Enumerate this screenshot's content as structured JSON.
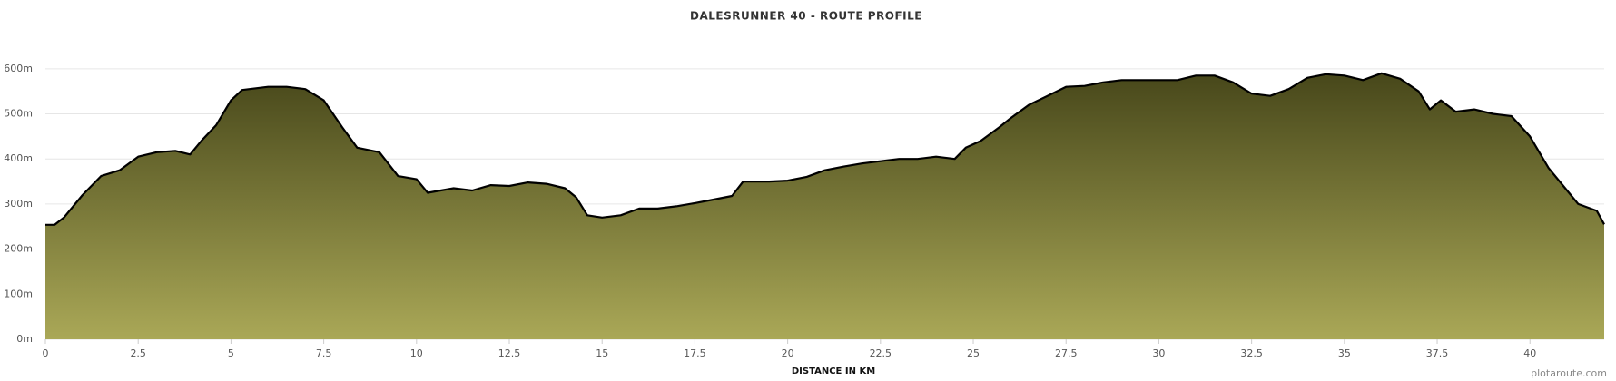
{
  "chart_data": {
    "type": "area",
    "title": "DALESRUNNER 40 - ROUTE PROFILE",
    "x_label": "DISTANCE IN KM",
    "credit": "plotaroute.com",
    "color": "#000000",
    "gradient": [
      "#47471a",
      "#aaa857"
    ],
    "x": [
      0,
      0.25,
      0.5,
      1.0,
      1.5,
      2.0,
      2.5,
      3.0,
      3.5,
      3.9,
      4.2,
      4.6,
      5.0,
      5.3,
      6.0,
      6.5,
      7.0,
      7.5,
      8.0,
      8.4,
      9.0,
      9.5,
      10.0,
      10.3,
      11.0,
      11.5,
      12.0,
      12.5,
      13.0,
      13.5,
      14.0,
      14.3,
      14.6,
      15.0,
      15.5,
      16.0,
      16.5,
      17.0,
      17.5,
      18.0,
      18.5,
      18.8,
      19.5,
      20.0,
      20.5,
      21.0,
      21.5,
      22.0,
      22.5,
      23.0,
      23.5,
      24.0,
      24.5,
      24.8,
      25.2,
      25.7,
      26.0,
      26.5,
      27.0,
      27.5,
      28.0,
      28.5,
      29.0,
      29.5,
      30.0,
      30.5,
      31.0,
      31.5,
      32.0,
      32.5,
      33.0,
      33.5,
      34.0,
      34.5,
      35.0,
      35.5,
      36.0,
      36.5,
      37.0,
      37.3,
      37.6,
      38.0,
      38.5,
      39.0,
      39.5,
      40.0,
      40.5,
      41.0,
      41.3,
      41.8,
      42.0
    ],
    "values": [
      254,
      254,
      270,
      320,
      362,
      375,
      405,
      415,
      418,
      410,
      440,
      475,
      530,
      553,
      560,
      560,
      555,
      530,
      470,
      425,
      415,
      362,
      355,
      325,
      335,
      330,
      342,
      340,
      348,
      345,
      335,
      315,
      275,
      270,
      275,
      290,
      290,
      295,
      302,
      310,
      318,
      350,
      350,
      352,
      360,
      375,
      383,
      390,
      395,
      400,
      400,
      405,
      400,
      425,
      440,
      470,
      490,
      520,
      540,
      560,
      562,
      570,
      575,
      575,
      575,
      575,
      585,
      585,
      570,
      545,
      540,
      555,
      580,
      588,
      585,
      575,
      590,
      578,
      550,
      510,
      530,
      505,
      510,
      500,
      495,
      450,
      380,
      330,
      300,
      285,
      255
    ],
    "xlim": [
      0,
      42
    ],
    "ylim": [
      0,
      650
    ],
    "xticks": [
      0,
      2.5,
      5,
      7.5,
      10,
      12.5,
      15,
      17.5,
      20,
      22.5,
      25,
      27.5,
      30,
      32.5,
      35,
      37.5,
      40
    ],
    "yticks": [
      {
        "value": 0,
        "label": "0m"
      },
      {
        "value": 100,
        "label": "100m"
      },
      {
        "value": 200,
        "label": "200m"
      },
      {
        "value": 300,
        "label": "300m"
      },
      {
        "value": 400,
        "label": "400m"
      },
      {
        "value": 500,
        "label": "500m"
      },
      {
        "value": 600,
        "label": "600m"
      }
    ],
    "grid": true
  }
}
